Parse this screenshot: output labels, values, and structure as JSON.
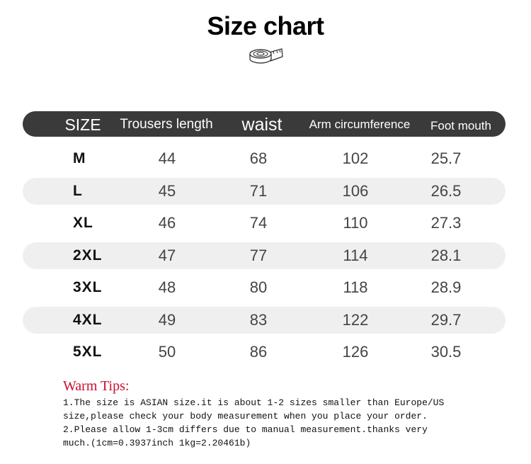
{
  "title": "Size chart",
  "icon": "tape-measure-icon",
  "colors": {
    "header_bg": "#3a3a3a",
    "stripe": "#efefef",
    "tips_title": "#c8102e"
  },
  "table": {
    "headers": [
      "SIZE",
      "Trousers length",
      "waist",
      "Arm circumference",
      "Foot mouth"
    ],
    "rows": [
      [
        "M",
        "44",
        "68",
        "102",
        "25.7"
      ],
      [
        "L",
        "45",
        "71",
        "106",
        "26.5"
      ],
      [
        "XL",
        "46",
        "74",
        "110",
        "27.3"
      ],
      [
        "2XL",
        "47",
        "77",
        "114",
        "28.1"
      ],
      [
        "3XL",
        "48",
        "80",
        "118",
        "28.9"
      ],
      [
        "4XL",
        "49",
        "83",
        "122",
        "29.7"
      ],
      [
        "5XL",
        "50",
        "86",
        "126",
        "30.5"
      ]
    ]
  },
  "tips": {
    "title": "Warm Tips:",
    "lines": [
      "1.The size is ASIAN size.it is about 1-2 sizes smaller than Europe/US",
      "size,please check your body measurement when you place your order.",
      "2.Please allow 1-3cm differs due to manual measurement.thanks very",
      "much.(1cm=0.3937inch 1kg=2.20461b)"
    ]
  }
}
